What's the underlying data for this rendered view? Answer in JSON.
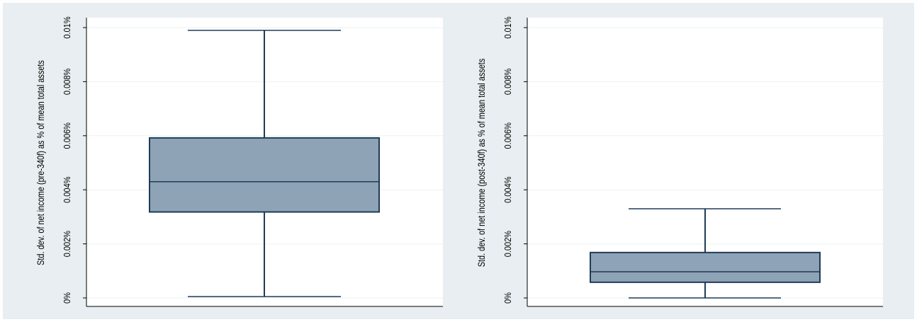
{
  "colors": {
    "outer_background": "#e8eef1",
    "plot_background": "#ffffff",
    "box_fill": "#8ea3b6",
    "line": "#1f3b57",
    "grid": "#eaf2f3",
    "axis": "#000000"
  },
  "chart_data": [
    {
      "type": "box",
      "ylabel": "Std. dev. of net income (pre-340f) as % of mean total assets",
      "ylim": [
        0,
        0.01
      ],
      "y_ticks": [
        0,
        0.002,
        0.004,
        0.006,
        0.008,
        0.01
      ],
      "y_tick_labels": [
        "0%",
        "0.002%",
        "0.004%",
        "0.006%",
        "0.008%",
        "0.01%"
      ],
      "grid": true,
      "box": {
        "whisker_low": 5e-05,
        "q1": 0.00318,
        "median": 0.0043,
        "q3": 0.00592,
        "whisker_high": 0.0099
      }
    },
    {
      "type": "box",
      "ylabel": "Std. dev. of net income (post-340f) as % of mean total assets",
      "ylim": [
        0,
        0.01
      ],
      "y_ticks": [
        0,
        0.002,
        0.004,
        0.006,
        0.008,
        0.01
      ],
      "y_tick_labels": [
        "0%",
        "0.002%",
        "0.004%",
        "0.006%",
        "0.008%",
        "0.01%"
      ],
      "grid": true,
      "box": {
        "whisker_low": 0.0,
        "q1": 0.00058,
        "median": 0.00097,
        "q3": 0.00168,
        "whisker_high": 0.0033
      }
    }
  ]
}
